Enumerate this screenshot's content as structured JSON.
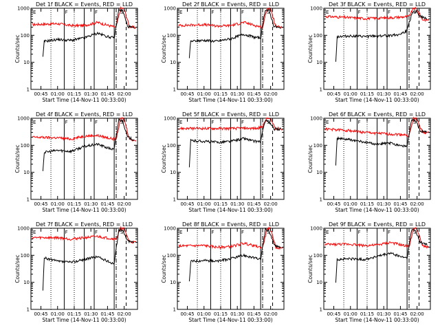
{
  "chart_data": {
    "type": "line",
    "scale": "log",
    "ylim": [
      1,
      1000
    ],
    "xlim": [
      0.6,
      2.2
    ],
    "grid": false,
    "xlabel": "Start Time (14-Nov-11 00:33:00)",
    "ylabel": "Counts/sec",
    "x_ticks": [
      "00:45",
      "01:00",
      "01:15",
      "01:30",
      "01:45",
      "02:00"
    ],
    "y_ticks": [
      "1",
      "10",
      "100",
      "1000"
    ],
    "flags": [
      "E",
      "F",
      "F",
      "S"
    ],
    "colors": {
      "events": "#000000",
      "lld": "#ff0000"
    },
    "panels": [
      {
        "title": "Det 1f BLACK = Events, RED = LLD",
        "events": [
          {
            "x": 0.78,
            "y": 15
          },
          {
            "x": 0.8,
            "y": 60
          },
          {
            "x": 1.0,
            "y": 70
          },
          {
            "x": 1.2,
            "y": 65
          },
          {
            "x": 1.4,
            "y": 80
          },
          {
            "x": 1.6,
            "y": 120
          },
          {
            "x": 1.75,
            "y": 90
          },
          {
            "x": 1.85,
            "y": 80
          },
          {
            "x": 1.92,
            "y": 900
          },
          {
            "x": 1.98,
            "y": 800
          },
          {
            "x": 2.05,
            "y": 220
          },
          {
            "x": 2.15,
            "y": 180
          }
        ],
        "lld": [
          {
            "x": 0.62,
            "y": 250
          },
          {
            "x": 1.0,
            "y": 270
          },
          {
            "x": 1.2,
            "y": 230
          },
          {
            "x": 1.4,
            "y": 230
          },
          {
            "x": 1.6,
            "y": 300
          },
          {
            "x": 1.8,
            "y": 220
          },
          {
            "x": 1.88,
            "y": 200
          },
          {
            "x": 1.95,
            "y": 1000
          },
          {
            "x": 2.0,
            "y": 950
          },
          {
            "x": 2.08,
            "y": 210
          },
          {
            "x": 2.18,
            "y": 190
          }
        ]
      },
      {
        "title": "Det 2f BLACK = Events, RED = LLD",
        "events": [
          {
            "x": 0.78,
            "y": 15
          },
          {
            "x": 0.8,
            "y": 60
          },
          {
            "x": 1.0,
            "y": 65
          },
          {
            "x": 1.2,
            "y": 60
          },
          {
            "x": 1.4,
            "y": 75
          },
          {
            "x": 1.6,
            "y": 110
          },
          {
            "x": 1.75,
            "y": 85
          },
          {
            "x": 1.85,
            "y": 80
          },
          {
            "x": 1.92,
            "y": 900
          },
          {
            "x": 1.98,
            "y": 800
          },
          {
            "x": 2.05,
            "y": 220
          },
          {
            "x": 2.15,
            "y": 180
          }
        ],
        "lld": [
          {
            "x": 0.62,
            "y": 230
          },
          {
            "x": 1.0,
            "y": 250
          },
          {
            "x": 1.2,
            "y": 220
          },
          {
            "x": 1.4,
            "y": 230
          },
          {
            "x": 1.6,
            "y": 300
          },
          {
            "x": 1.8,
            "y": 220
          },
          {
            "x": 1.88,
            "y": 200
          },
          {
            "x": 1.95,
            "y": 1000
          },
          {
            "x": 2.0,
            "y": 950
          },
          {
            "x": 2.08,
            "y": 210
          },
          {
            "x": 2.18,
            "y": 190
          }
        ]
      },
      {
        "title": "Det 3f BLACK = Events, RED = LLD",
        "events": [
          {
            "x": 0.78,
            "y": 10
          },
          {
            "x": 0.8,
            "y": 90
          },
          {
            "x": 1.0,
            "y": 95
          },
          {
            "x": 1.2,
            "y": 90
          },
          {
            "x": 1.4,
            "y": 95
          },
          {
            "x": 1.6,
            "y": 100
          },
          {
            "x": 1.75,
            "y": 110
          },
          {
            "x": 1.85,
            "y": 150
          },
          {
            "x": 1.92,
            "y": 600
          },
          {
            "x": 1.98,
            "y": 800
          },
          {
            "x": 2.05,
            "y": 500
          },
          {
            "x": 2.15,
            "y": 400
          }
        ],
        "lld": [
          {
            "x": 0.62,
            "y": 500
          },
          {
            "x": 1.0,
            "y": 450
          },
          {
            "x": 1.2,
            "y": 420
          },
          {
            "x": 1.4,
            "y": 430
          },
          {
            "x": 1.6,
            "y": 450
          },
          {
            "x": 1.8,
            "y": 480
          },
          {
            "x": 1.88,
            "y": 500
          },
          {
            "x": 1.95,
            "y": 1000
          },
          {
            "x": 2.0,
            "y": 950
          },
          {
            "x": 2.08,
            "y": 380
          },
          {
            "x": 2.18,
            "y": 370
          }
        ]
      },
      {
        "title": "Det 4f BLACK = Events, RED = LLD",
        "events": [
          {
            "x": 0.78,
            "y": 12
          },
          {
            "x": 0.8,
            "y": 55
          },
          {
            "x": 1.0,
            "y": 65
          },
          {
            "x": 1.2,
            "y": 60
          },
          {
            "x": 1.4,
            "y": 90
          },
          {
            "x": 1.6,
            "y": 110
          },
          {
            "x": 1.75,
            "y": 80
          },
          {
            "x": 1.85,
            "y": 70
          },
          {
            "x": 1.92,
            "y": 900
          },
          {
            "x": 1.98,
            "y": 800
          },
          {
            "x": 2.05,
            "y": 200
          },
          {
            "x": 2.15,
            "y": 160
          }
        ],
        "lld": [
          {
            "x": 0.62,
            "y": 200
          },
          {
            "x": 1.0,
            "y": 190
          },
          {
            "x": 1.2,
            "y": 170
          },
          {
            "x": 1.4,
            "y": 220
          },
          {
            "x": 1.6,
            "y": 230
          },
          {
            "x": 1.8,
            "y": 180
          },
          {
            "x": 1.88,
            "y": 170
          },
          {
            "x": 1.95,
            "y": 1000
          },
          {
            "x": 2.0,
            "y": 950
          },
          {
            "x": 2.08,
            "y": 170
          },
          {
            "x": 2.18,
            "y": 150
          }
        ]
      },
      {
        "title": "Det 5f BLACK = Events, RED = LLD",
        "events": [
          {
            "x": 0.78,
            "y": 15
          },
          {
            "x": 0.8,
            "y": 150
          },
          {
            "x": 1.0,
            "y": 140
          },
          {
            "x": 1.2,
            "y": 130
          },
          {
            "x": 1.4,
            "y": 140
          },
          {
            "x": 1.6,
            "y": 180
          },
          {
            "x": 1.75,
            "y": 140
          },
          {
            "x": 1.85,
            "y": 140
          },
          {
            "x": 1.92,
            "y": 900
          },
          {
            "x": 1.98,
            "y": 700
          },
          {
            "x": 2.05,
            "y": 400
          },
          {
            "x": 2.15,
            "y": 400
          }
        ],
        "lld": [
          {
            "x": 0.62,
            "y": 420
          },
          {
            "x": 1.0,
            "y": 420
          },
          {
            "x": 1.2,
            "y": 420
          },
          {
            "x": 1.4,
            "y": 420
          },
          {
            "x": 1.6,
            "y": 430
          },
          {
            "x": 1.8,
            "y": 420
          },
          {
            "x": 1.88,
            "y": 500
          },
          {
            "x": 1.95,
            "y": 1000
          },
          {
            "x": 2.0,
            "y": 900
          },
          {
            "x": 2.08,
            "y": 420
          },
          {
            "x": 2.18,
            "y": 400
          }
        ]
      },
      {
        "title": "Det 6f BLACK = Events, RED = LLD",
        "events": [
          {
            "x": 0.78,
            "y": 20
          },
          {
            "x": 0.8,
            "y": 180
          },
          {
            "x": 1.0,
            "y": 160
          },
          {
            "x": 1.2,
            "y": 130
          },
          {
            "x": 1.4,
            "y": 110
          },
          {
            "x": 1.6,
            "y": 120
          },
          {
            "x": 1.75,
            "y": 100
          },
          {
            "x": 1.85,
            "y": 90
          },
          {
            "x": 1.92,
            "y": 900
          },
          {
            "x": 1.98,
            "y": 800
          },
          {
            "x": 2.05,
            "y": 350
          },
          {
            "x": 2.15,
            "y": 300
          }
        ],
        "lld": [
          {
            "x": 0.62,
            "y": 400
          },
          {
            "x": 1.0,
            "y": 350
          },
          {
            "x": 1.2,
            "y": 300
          },
          {
            "x": 1.4,
            "y": 280
          },
          {
            "x": 1.6,
            "y": 260
          },
          {
            "x": 1.8,
            "y": 250
          },
          {
            "x": 1.88,
            "y": 220
          },
          {
            "x": 1.95,
            "y": 1000
          },
          {
            "x": 2.0,
            "y": 950
          },
          {
            "x": 2.08,
            "y": 300
          },
          {
            "x": 2.18,
            "y": 280
          }
        ]
      },
      {
        "title": "Det 7f BLACK = Events, RED = LLD",
        "events": [
          {
            "x": 0.78,
            "y": 5
          },
          {
            "x": 0.8,
            "y": 80
          },
          {
            "x": 1.0,
            "y": 60
          },
          {
            "x": 1.2,
            "y": 55
          },
          {
            "x": 1.4,
            "y": 70
          },
          {
            "x": 1.6,
            "y": 90
          },
          {
            "x": 1.75,
            "y": 60
          },
          {
            "x": 1.85,
            "y": 50
          },
          {
            "x": 1.92,
            "y": 900
          },
          {
            "x": 1.98,
            "y": 800
          },
          {
            "x": 2.05,
            "y": 350
          },
          {
            "x": 2.15,
            "y": 300
          }
        ],
        "lld": [
          {
            "x": 0.62,
            "y": 450
          },
          {
            "x": 1.0,
            "y": 450
          },
          {
            "x": 1.2,
            "y": 400
          },
          {
            "x": 1.4,
            "y": 450
          },
          {
            "x": 1.6,
            "y": 500
          },
          {
            "x": 1.8,
            "y": 420
          },
          {
            "x": 1.88,
            "y": 400
          },
          {
            "x": 1.95,
            "y": 1000
          },
          {
            "x": 2.0,
            "y": 950
          },
          {
            "x": 2.08,
            "y": 320
          },
          {
            "x": 2.18,
            "y": 300
          }
        ]
      },
      {
        "title": "Det 8f BLACK = Events, RED = LLD",
        "events": [
          {
            "x": 0.78,
            "y": 10
          },
          {
            "x": 0.8,
            "y": 60
          },
          {
            "x": 1.0,
            "y": 65
          },
          {
            "x": 1.2,
            "y": 60
          },
          {
            "x": 1.4,
            "y": 75
          },
          {
            "x": 1.6,
            "y": 100
          },
          {
            "x": 1.75,
            "y": 80
          },
          {
            "x": 1.85,
            "y": 70
          },
          {
            "x": 1.92,
            "y": 900
          },
          {
            "x": 1.98,
            "y": 800
          },
          {
            "x": 2.05,
            "y": 250
          },
          {
            "x": 2.15,
            "y": 200
          }
        ],
        "lld": [
          {
            "x": 0.62,
            "y": 220
          },
          {
            "x": 1.0,
            "y": 230
          },
          {
            "x": 1.2,
            "y": 200
          },
          {
            "x": 1.4,
            "y": 210
          },
          {
            "x": 1.6,
            "y": 280
          },
          {
            "x": 1.8,
            "y": 210
          },
          {
            "x": 1.88,
            "y": 190
          },
          {
            "x": 1.95,
            "y": 1000
          },
          {
            "x": 2.0,
            "y": 950
          },
          {
            "x": 2.08,
            "y": 200
          },
          {
            "x": 2.18,
            "y": 180
          }
        ]
      },
      {
        "title": "Det 9f BLACK = Events, RED = LLD",
        "events": [
          {
            "x": 0.78,
            "y": 10
          },
          {
            "x": 0.8,
            "y": 70
          },
          {
            "x": 1.0,
            "y": 75
          },
          {
            "x": 1.2,
            "y": 70
          },
          {
            "x": 1.4,
            "y": 90
          },
          {
            "x": 1.6,
            "y": 120
          },
          {
            "x": 1.75,
            "y": 90
          },
          {
            "x": 1.85,
            "y": 80
          },
          {
            "x": 1.92,
            "y": 900
          },
          {
            "x": 1.98,
            "y": 800
          },
          {
            "x": 2.05,
            "y": 300
          },
          {
            "x": 2.15,
            "y": 250
          }
        ],
        "lld": [
          {
            "x": 0.62,
            "y": 250
          },
          {
            "x": 1.0,
            "y": 260
          },
          {
            "x": 1.2,
            "y": 230
          },
          {
            "x": 1.4,
            "y": 240
          },
          {
            "x": 1.6,
            "y": 300
          },
          {
            "x": 1.8,
            "y": 230
          },
          {
            "x": 1.88,
            "y": 210
          },
          {
            "x": 1.95,
            "y": 1000
          },
          {
            "x": 2.0,
            "y": 950
          },
          {
            "x": 2.08,
            "y": 230
          },
          {
            "x": 2.18,
            "y": 200
          }
        ]
      }
    ]
  }
}
